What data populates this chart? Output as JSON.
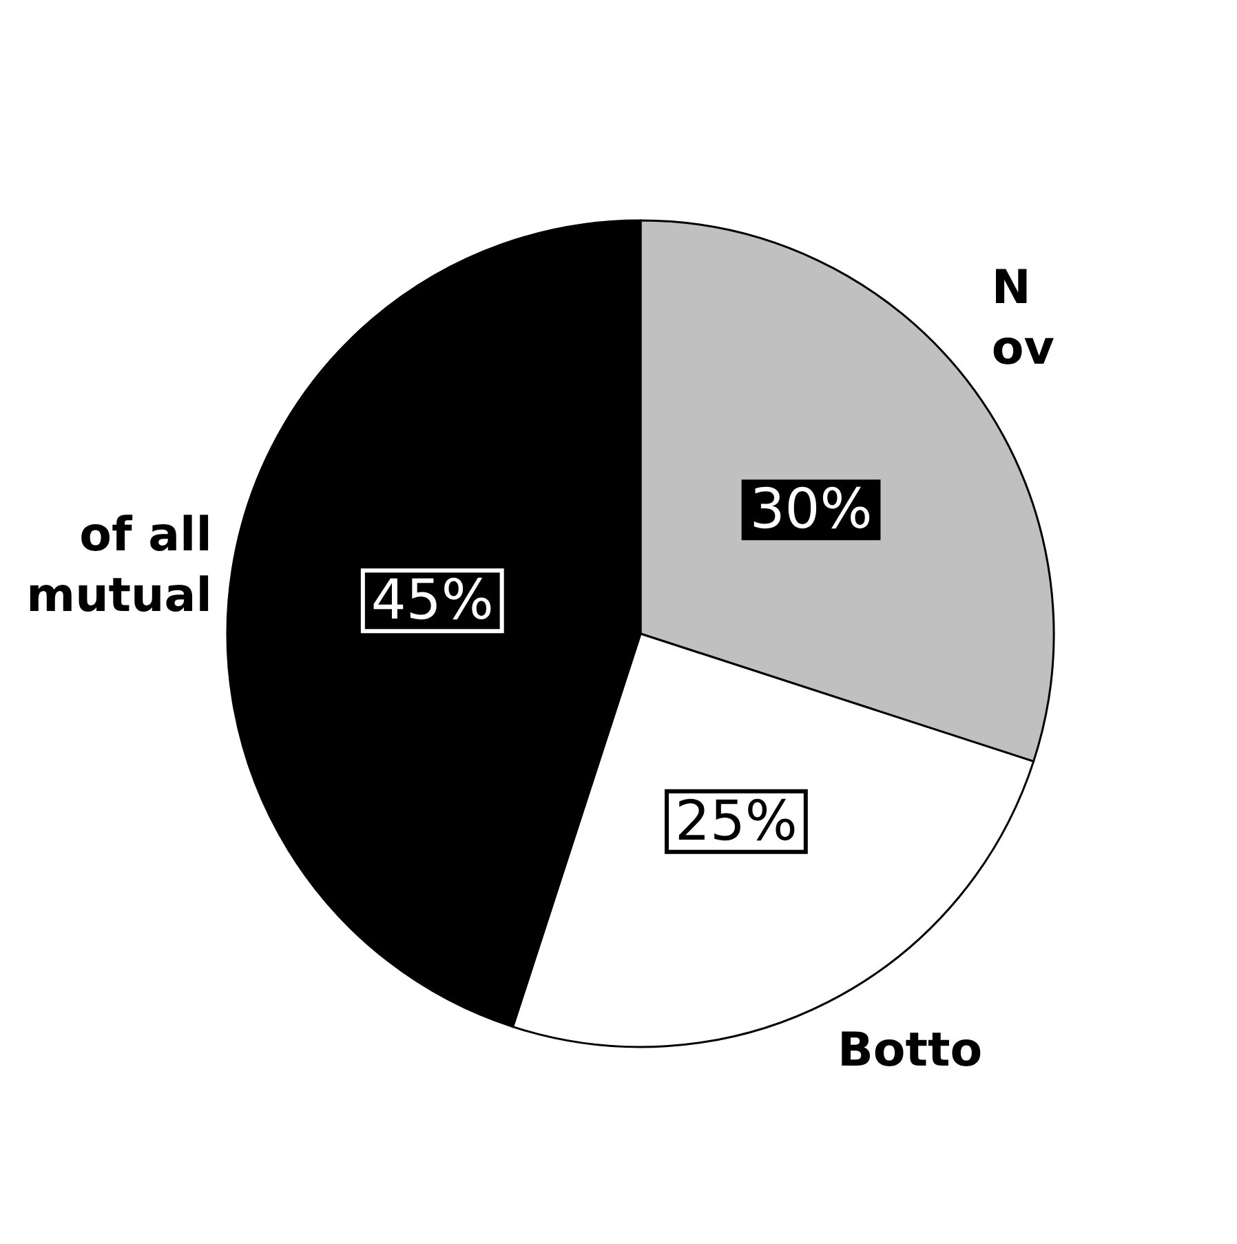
{
  "chart_data": {
    "type": "pie",
    "categories": [
      "N\nov",
      "Botto",
      "of all\nmutual"
    ],
    "values": [
      30,
      25,
      45
    ],
    "colors": [
      "#c0c0c0",
      "#ffffff",
      "#000000"
    ],
    "value_labels": [
      "30%",
      "25%",
      "45%"
    ]
  }
}
